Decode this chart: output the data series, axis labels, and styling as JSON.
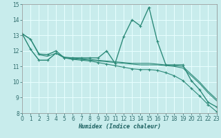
{
  "xlabel": "Humidex (Indice chaleur)",
  "xlim": [
    0,
    23
  ],
  "ylim": [
    8,
    15
  ],
  "yticks": [
    8,
    9,
    10,
    11,
    12,
    13,
    14,
    15
  ],
  "xticks": [
    0,
    1,
    2,
    3,
    4,
    5,
    6,
    7,
    8,
    9,
    10,
    11,
    12,
    13,
    14,
    15,
    16,
    17,
    18,
    19,
    20,
    21,
    22,
    23
  ],
  "bg_color": "#c8ecec",
  "grid_color": "#e8ffff",
  "line_color": "#2e8b7a",
  "series": [
    {
      "y": [
        13.1,
        12.75,
        11.8,
        11.75,
        12.0,
        11.55,
        11.55,
        11.55,
        11.55,
        11.55,
        12.0,
        11.2,
        12.9,
        14.0,
        13.6,
        14.8,
        12.6,
        11.1,
        11.1,
        11.1,
        10.1,
        9.5,
        8.7,
        8.4
      ],
      "marker": true,
      "lw": 1.0
    },
    {
      "y": [
        13.1,
        12.75,
        11.75,
        11.65,
        11.85,
        11.6,
        11.55,
        11.5,
        11.45,
        11.4,
        11.35,
        11.3,
        11.25,
        11.2,
        11.2,
        11.2,
        11.15,
        11.1,
        11.05,
        11.0,
        10.5,
        10.0,
        9.4,
        8.9
      ],
      "marker": false,
      "lw": 0.8
    },
    {
      "y": [
        13.1,
        12.1,
        11.4,
        11.4,
        11.85,
        11.55,
        11.5,
        11.45,
        11.4,
        11.35,
        11.3,
        11.25,
        11.2,
        11.15,
        11.1,
        11.1,
        11.1,
        11.05,
        11.0,
        10.9,
        10.4,
        9.9,
        9.3,
        8.8
      ],
      "marker": false,
      "lw": 0.8
    },
    {
      "y": [
        13.1,
        12.1,
        11.4,
        11.4,
        11.85,
        11.55,
        11.45,
        11.4,
        11.35,
        11.25,
        11.15,
        11.05,
        10.95,
        10.85,
        10.8,
        10.8,
        10.75,
        10.6,
        10.4,
        10.1,
        9.6,
        9.1,
        8.55,
        8.1
      ],
      "marker": true,
      "lw": 0.8
    }
  ]
}
